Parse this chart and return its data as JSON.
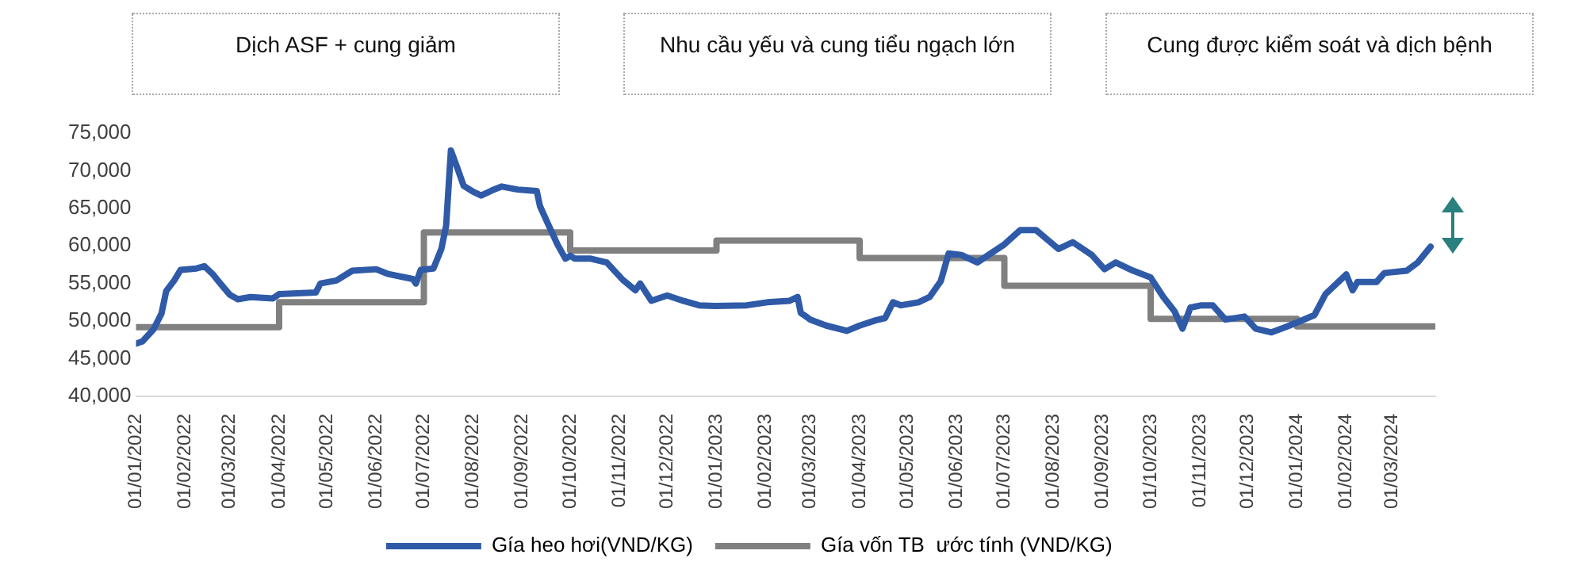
{
  "chart_data": {
    "type": "line",
    "annotations": [
      "Dịch ASF + cung giảm",
      "Nhu cầu yếu và cung tiểu ngạch lớn",
      "Cung được kiểm soát và dịch bệnh"
    ],
    "xlim": [
      "2022-01-01",
      "2024-03-28"
    ],
    "xticks": [
      {
        "value": "2022-01-01",
        "label": "01/01/2022"
      },
      {
        "value": "2022-02-01",
        "label": "01/02/2022"
      },
      {
        "value": "2022-03-01",
        "label": "01/03/2022"
      },
      {
        "value": "2022-04-01",
        "label": "01/04/2022"
      },
      {
        "value": "2022-05-01",
        "label": "01/05/2022"
      },
      {
        "value": "2022-06-01",
        "label": "01/06/2022"
      },
      {
        "value": "2022-07-01",
        "label": "01/07/2022"
      },
      {
        "value": "2022-08-01",
        "label": "01/08/2022"
      },
      {
        "value": "2022-09-01",
        "label": "01/09/2022"
      },
      {
        "value": "2022-10-01",
        "label": "01/10/2022"
      },
      {
        "value": "2022-11-01",
        "label": "01/11/2022"
      },
      {
        "value": "2022-12-01",
        "label": "01/12/2022"
      },
      {
        "value": "2023-01-01",
        "label": "01/01/2023"
      },
      {
        "value": "2023-02-01",
        "label": "01/02/2023"
      },
      {
        "value": "2023-03-01",
        "label": "01/03/2023"
      },
      {
        "value": "2023-04-01",
        "label": "01/04/2023"
      },
      {
        "value": "2023-05-01",
        "label": "01/05/2023"
      },
      {
        "value": "2023-06-01",
        "label": "01/06/2023"
      },
      {
        "value": "2023-07-01",
        "label": "01/07/2023"
      },
      {
        "value": "2023-08-01",
        "label": "01/08/2023"
      },
      {
        "value": "2023-09-01",
        "label": "01/09/2023"
      },
      {
        "value": "2023-10-01",
        "label": "01/10/2023"
      },
      {
        "value": "2023-11-01",
        "label": "01/11/2023"
      },
      {
        "value": "2023-12-01",
        "label": "01/12/2023"
      },
      {
        "value": "2024-01-01",
        "label": "01/01/2024"
      },
      {
        "value": "2024-02-01",
        "label": "01/02/2024"
      },
      {
        "value": "2024-03-01",
        "label": "01/03/2024"
      }
    ],
    "ylim": [
      40000,
      75000
    ],
    "yticks": [
      {
        "value": 40000,
        "label": "40,000"
      },
      {
        "value": 45000,
        "label": "45,000"
      },
      {
        "value": 50000,
        "label": "50,000"
      },
      {
        "value": 55000,
        "label": "55,000"
      },
      {
        "value": 60000,
        "label": "60,000"
      },
      {
        "value": 65000,
        "label": "65,000"
      },
      {
        "value": 70000,
        "label": "70,000"
      },
      {
        "value": 75000,
        "label": "75,000"
      }
    ],
    "grid": false,
    "legend": "bottom",
    "marker": "none",
    "line_style": "solid",
    "series": [
      {
        "name": "Gía heo hơi(VND/KG)",
        "color": "#2e5aa8",
        "x": [
          "2022-01-01",
          "2022-01-05",
          "2022-01-12",
          "2022-01-17",
          "2022-01-20",
          "2022-01-25",
          "2022-01-29",
          "2022-02-08",
          "2022-02-13",
          "2022-02-18",
          "2022-02-23",
          "2022-03-01",
          "2022-03-06",
          "2022-03-14",
          "2022-03-28",
          "2022-04-01",
          "2022-04-24",
          "2022-04-27",
          "2022-05-07",
          "2022-05-17",
          "2022-06-01",
          "2022-06-08",
          "2022-06-24",
          "2022-06-26",
          "2022-06-29",
          "2022-07-07",
          "2022-07-12",
          "2022-07-15",
          "2022-07-18",
          "2022-07-22",
          "2022-07-26",
          "2022-08-01",
          "2022-08-06",
          "2022-08-13",
          "2022-08-19",
          "2022-08-29",
          "2022-09-10",
          "2022-09-12",
          "2022-09-18",
          "2022-09-23",
          "2022-09-28",
          "2022-10-01",
          "2022-10-04",
          "2022-10-14",
          "2022-10-24",
          "2022-11-03",
          "2022-11-11",
          "2022-11-14",
          "2022-11-21",
          "2022-12-01",
          "2022-12-11",
          "2022-12-21",
          "2022-12-31",
          "2023-01-20",
          "2023-02-02",
          "2023-02-16",
          "2023-02-21",
          "2023-02-23",
          "2023-03-01",
          "2023-03-11",
          "2023-03-24",
          "2023-04-01",
          "2023-04-11",
          "2023-04-17",
          "2023-04-22",
          "2023-04-27",
          "2023-05-08",
          "2023-05-15",
          "2023-05-22",
          "2023-05-27",
          "2023-06-04",
          "2023-06-14",
          "2023-06-21",
          "2023-07-01",
          "2023-07-11",
          "2023-07-21",
          "2023-08-04",
          "2023-08-13",
          "2023-08-25",
          "2023-09-02",
          "2023-09-09",
          "2023-09-20",
          "2023-10-01",
          "2023-10-09",
          "2023-10-16",
          "2023-10-21",
          "2023-10-26",
          "2023-11-02",
          "2023-11-09",
          "2023-11-17",
          "2023-11-29",
          "2023-12-06",
          "2023-12-16",
          "2023-12-26",
          "2024-01-02",
          "2024-01-12",
          "2024-01-19",
          "2024-02-01",
          "2024-02-05",
          "2024-02-08",
          "2024-02-20",
          "2024-02-25",
          "2024-03-10",
          "2024-03-17",
          "2024-03-25"
        ],
        "values": [
          47000,
          47300,
          48900,
          51000,
          54000,
          55400,
          56800,
          57000,
          57300,
          56300,
          55000,
          53500,
          52900,
          53200,
          53000,
          53600,
          53800,
          55000,
          55400,
          56700,
          56900,
          56300,
          55600,
          55000,
          56800,
          57000,
          59600,
          62700,
          72700,
          70400,
          68000,
          67200,
          66700,
          67400,
          67900,
          67500,
          67300,
          65300,
          62500,
          60200,
          58300,
          58700,
          58300,
          58300,
          57800,
          55500,
          54100,
          55000,
          52700,
          53400,
          52700,
          52100,
          52000,
          52100,
          52500,
          52700,
          53200,
          51100,
          50200,
          49400,
          48700,
          49400,
          50100,
          50400,
          52500,
          52100,
          52500,
          53200,
          55300,
          59000,
          58800,
          57800,
          58800,
          60200,
          62100,
          62100,
          59600,
          60500,
          58800,
          56900,
          57800,
          56700,
          55800,
          53200,
          51300,
          49000,
          51800,
          52100,
          52100,
          50200,
          50600,
          49000,
          48500,
          49300,
          49900,
          50800,
          53600,
          56200,
          54100,
          55200,
          55200,
          56400,
          56700,
          57800,
          59900
        ]
      },
      {
        "name": "Gía vốn TB  ước tính (VND/KG)",
        "color": "#808080",
        "type": "step",
        "x": [
          "2022-01-01",
          "2022-04-01",
          "2022-07-01",
          "2022-10-01",
          "2023-01-01",
          "2023-04-01",
          "2023-07-01",
          "2023-10-01",
          "2024-01-01",
          "2024-03-28"
        ],
        "values": [
          49200,
          52500,
          61800,
          59400,
          60700,
          58400,
          54700,
          50300,
          49300,
          49300
        ]
      }
    ]
  }
}
